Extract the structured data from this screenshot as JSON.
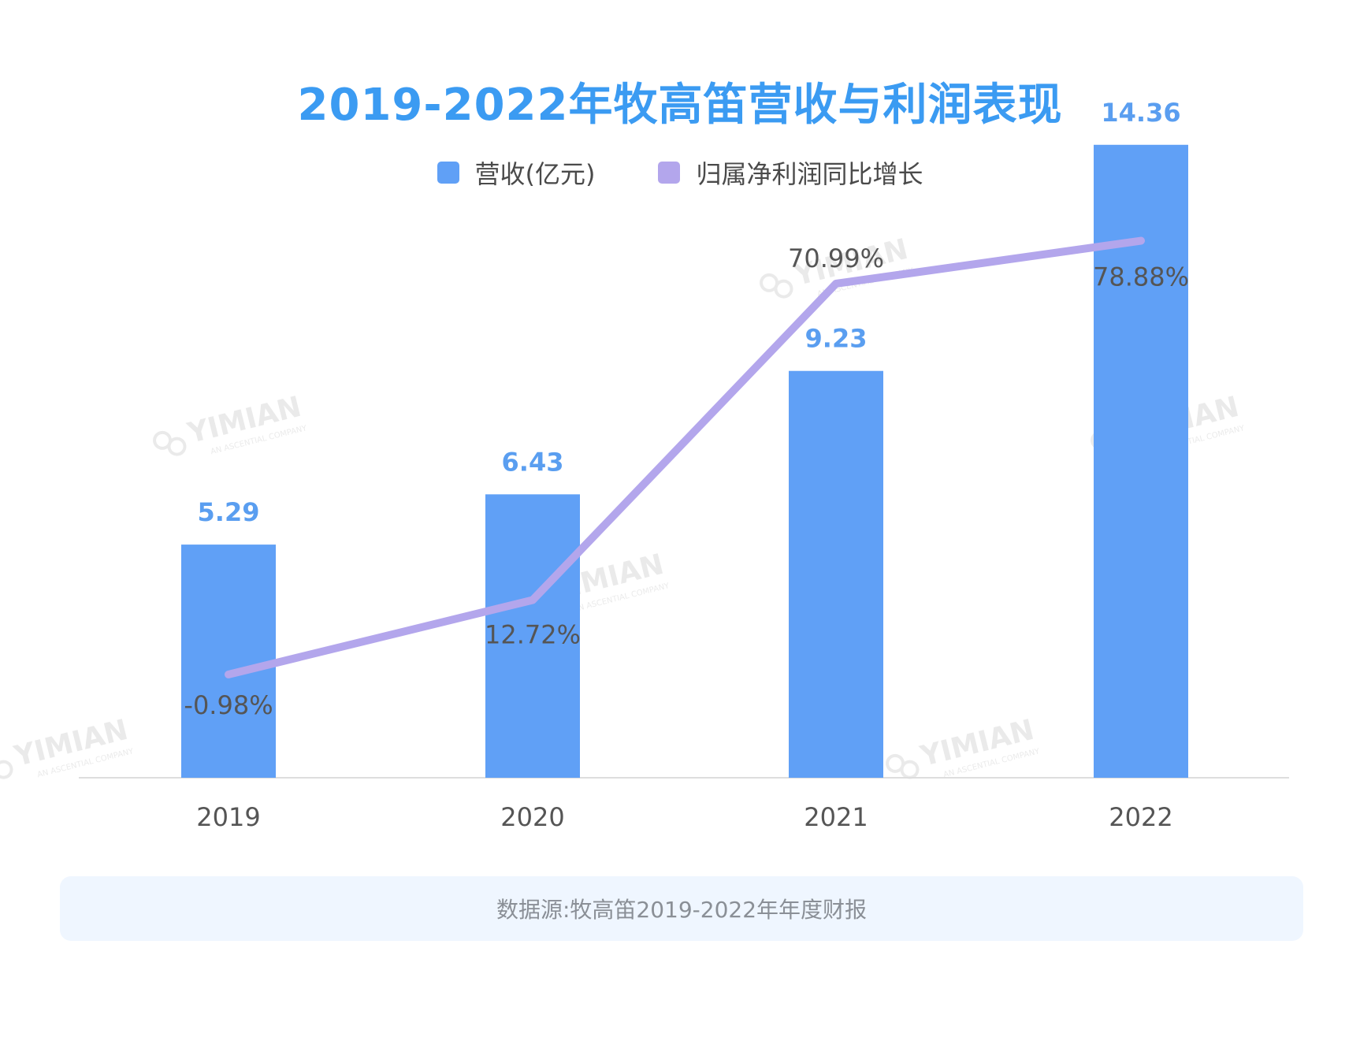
{
  "chart_data": {
    "type": "bar",
    "title": "2019-2022年牧高笛营收与利润表现",
    "categories": [
      "2019",
      "2020",
      "2021",
      "2022"
    ],
    "series": [
      {
        "name": "营收(亿元)",
        "kind": "bar",
        "color": "#60a0f6",
        "values": [
          5.29,
          6.43,
          9.23,
          14.36
        ],
        "labels": [
          "5.29",
          "6.43",
          "9.23",
          "14.36"
        ]
      },
      {
        "name": "归属净利润同比增长",
        "kind": "line",
        "color": "#b3a6ec",
        "values": [
          -0.98,
          12.72,
          70.99,
          78.88
        ],
        "labels": [
          "-0.98%",
          "12.72%",
          "70.99%",
          "78.88%"
        ]
      }
    ],
    "bar_ylim": [
      0,
      15.5
    ],
    "line_ylim": [
      -20,
      100
    ],
    "legend_position": "top-center"
  },
  "source": "数据源:牧高笛2019-2022年年度财报",
  "watermark": {
    "brand": "YIMIAN",
    "tagline": "AN ASCENTIAL COMPANY"
  },
  "colors": {
    "title": "#3b9bf2",
    "bar_label": "#5a9ef0",
    "axis": "#dddddd"
  }
}
